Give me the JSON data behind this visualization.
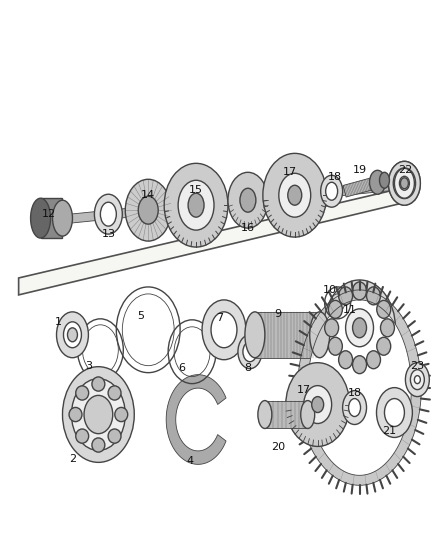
{
  "bg_color": "#ffffff",
  "line_color": "#444444",
  "fig_width": 4.38,
  "fig_height": 5.33,
  "dpi": 100
}
